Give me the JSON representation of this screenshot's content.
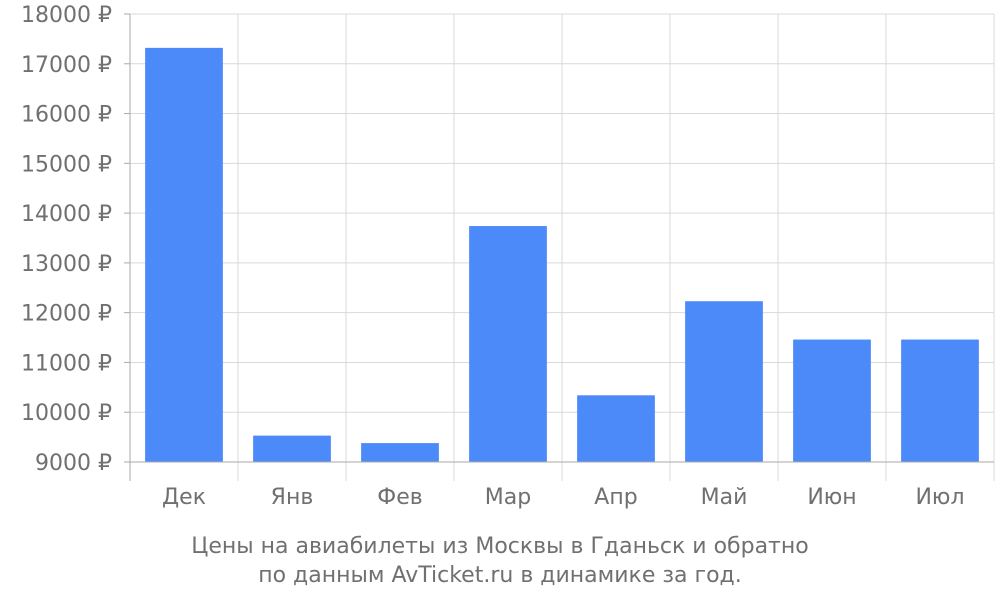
{
  "colors": {
    "bar": "#4d8af9",
    "grid": "#d9d9d9",
    "axis": "#aaaaaa",
    "text": "#707070"
  },
  "caption": {
    "line1": "Цены на авиабилеты из Москвы в Гданьск и обратно",
    "line2": "по данным AvTicket.ru в динамике за год."
  },
  "chart_data": {
    "type": "bar",
    "title": "",
    "xlabel": "",
    "ylabel": "",
    "categories": [
      "Дек",
      "Янв",
      "Фев",
      "Мар",
      "Апр",
      "Май",
      "Июн",
      "Июл"
    ],
    "values": [
      17320,
      9530,
      9380,
      13740,
      10340,
      12230,
      11460,
      11460
    ],
    "ylim": [
      9000,
      18000
    ],
    "yticks": [
      9000,
      10000,
      11000,
      12000,
      13000,
      14000,
      15000,
      16000,
      17000,
      18000
    ],
    "ytick_suffix": " ₽",
    "grid": true,
    "legend": "none"
  }
}
